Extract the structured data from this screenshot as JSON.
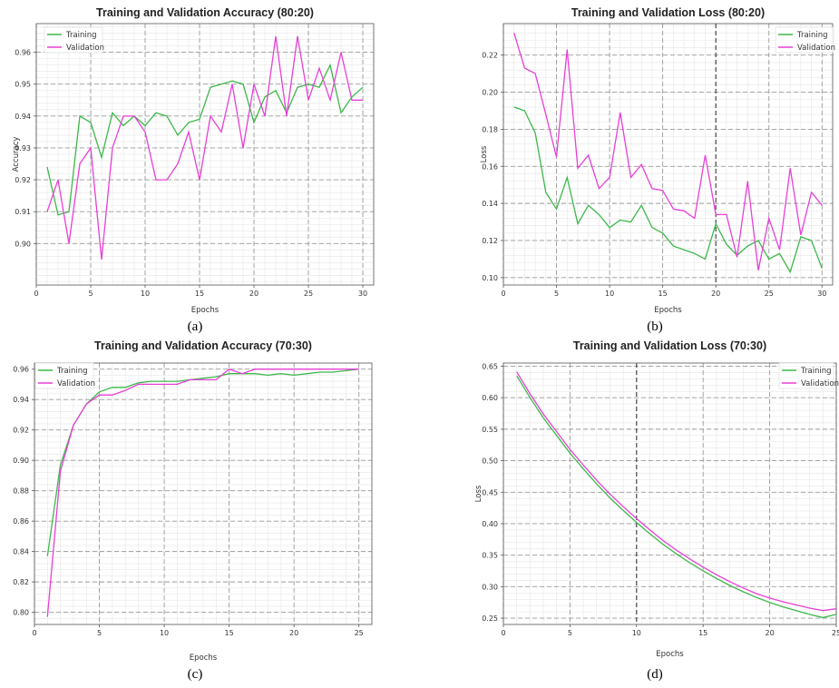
{
  "colors": {
    "training": "#3cb84a",
    "validation": "#e83fd8"
  },
  "chart_data": [
    {
      "type": "line",
      "title": "Training and Validation Accuracy (80:20)",
      "xlabel": "Epochs",
      "ylabel": "Accuracy",
      "caption": "(a)",
      "xlim": [
        0,
        31
      ],
      "ylim": [
        0.887,
        0.969
      ],
      "xticks": [
        "0",
        "5",
        "10",
        "15",
        "20",
        "25",
        "30"
      ],
      "yticks": [
        "0.90",
        "0.91",
        "0.92",
        "0.93",
        "0.94",
        "0.95",
        "0.96"
      ],
      "grid": true,
      "legend_position": "top-left",
      "x": [
        1,
        2,
        3,
        4,
        5,
        6,
        7,
        8,
        9,
        10,
        11,
        12,
        13,
        14,
        15,
        16,
        17,
        18,
        19,
        20,
        21,
        22,
        23,
        24,
        25,
        26,
        27,
        28,
        29,
        30
      ],
      "series": [
        {
          "name": "Training",
          "values": [
            0.924,
            0.909,
            0.91,
            0.94,
            0.938,
            0.927,
            0.941,
            0.937,
            0.94,
            0.937,
            0.941,
            0.94,
            0.934,
            0.938,
            0.939,
            0.949,
            0.95,
            0.951,
            0.95,
            0.938,
            0.946,
            0.948,
            0.941,
            0.949,
            0.95,
            0.949,
            0.956,
            0.941,
            0.946,
            0.949
          ]
        },
        {
          "name": "Validation",
          "values": [
            0.91,
            0.92,
            0.9,
            0.925,
            0.93,
            0.895,
            0.93,
            0.94,
            0.94,
            0.935,
            0.92,
            0.92,
            0.925,
            0.935,
            0.92,
            0.94,
            0.935,
            0.95,
            0.93,
            0.95,
            0.94,
            0.965,
            0.94,
            0.965,
            0.945,
            0.955,
            0.945,
            0.96,
            0.945,
            0.945
          ]
        }
      ]
    },
    {
      "type": "line",
      "title": "Training and Validation Loss (80:20)",
      "xlabel": "Epochs",
      "ylabel": "Loss",
      "caption": "(b)",
      "xlim": [
        0,
        31
      ],
      "ylim": [
        0.096,
        0.237
      ],
      "xticks": [
        "0",
        "5",
        "10",
        "15",
        "20",
        "25",
        "30"
      ],
      "yticks": [
        "0.10",
        "0.12",
        "0.14",
        "0.16",
        "0.18",
        "0.20",
        "0.22"
      ],
      "grid": true,
      "legend_position": "top-right",
      "x": [
        1,
        2,
        3,
        4,
        5,
        6,
        7,
        8,
        9,
        10,
        11,
        12,
        13,
        14,
        15,
        16,
        17,
        18,
        19,
        20,
        21,
        22,
        23,
        24,
        25,
        26,
        27,
        28,
        29,
        30
      ],
      "series": [
        {
          "name": "Training",
          "values": [
            0.192,
            0.19,
            0.178,
            0.146,
            0.137,
            0.154,
            0.129,
            0.139,
            0.134,
            0.127,
            0.131,
            0.13,
            0.139,
            0.127,
            0.124,
            0.117,
            0.115,
            0.113,
            0.11,
            0.129,
            0.118,
            0.112,
            0.117,
            0.12,
            0.11,
            0.113,
            0.103,
            0.122,
            0.12,
            0.105
          ]
        },
        {
          "name": "Validation",
          "values": [
            0.232,
            0.213,
            0.21,
            0.188,
            0.165,
            0.223,
            0.159,
            0.166,
            0.148,
            0.154,
            0.189,
            0.154,
            0.161,
            0.148,
            0.147,
            0.137,
            0.136,
            0.132,
            0.166,
            0.134,
            0.134,
            0.111,
            0.152,
            0.104,
            0.132,
            0.115,
            0.159,
            0.123,
            0.146,
            0.139
          ]
        }
      ]
    },
    {
      "type": "line",
      "title": "Training and Validation Accuracy (70:30)",
      "xlabel": "Epochs",
      "ylabel": "",
      "caption": "(c)",
      "xlim": [
        0,
        26
      ],
      "ylim": [
        0.792,
        0.964
      ],
      "xticks": [
        "0",
        "5",
        "10",
        "15",
        "20",
        "25"
      ],
      "yticks": [
        "0.80",
        "0.82",
        "0.84",
        "0.86",
        "0.88",
        "0.90",
        "0.92",
        "0.94",
        "0.96"
      ],
      "grid": true,
      "legend_position": "top-left",
      "x": [
        1,
        2,
        3,
        4,
        5,
        6,
        7,
        8,
        9,
        10,
        11,
        12,
        13,
        14,
        15,
        16,
        17,
        18,
        19,
        20,
        21,
        22,
        23,
        24,
        25
      ],
      "series": [
        {
          "name": "Training",
          "values": [
            0.837,
            0.897,
            0.923,
            0.937,
            0.945,
            0.948,
            0.948,
            0.951,
            0.952,
            0.952,
            0.952,
            0.953,
            0.954,
            0.955,
            0.957,
            0.957,
            0.957,
            0.956,
            0.957,
            0.956,
            0.957,
            0.958,
            0.958,
            0.959,
            0.96
          ]
        },
        {
          "name": "Validation",
          "values": [
            0.797,
            0.893,
            0.923,
            0.937,
            0.943,
            0.943,
            0.946,
            0.95,
            0.95,
            0.95,
            0.95,
            0.953,
            0.953,
            0.953,
            0.96,
            0.957,
            0.96,
            0.96,
            0.96,
            0.96,
            0.96,
            0.96,
            0.96,
            0.96,
            0.96
          ]
        }
      ]
    },
    {
      "type": "line",
      "title": "Training and Validation Loss (70:30)",
      "xlabel": "Epochs",
      "ylabel": "Loss",
      "caption": "(d)",
      "xlim": [
        0,
        25
      ],
      "ylim": [
        0.24,
        0.655
      ],
      "xticks": [
        "0",
        "5",
        "10",
        "15",
        "20",
        "25"
      ],
      "yticks": [
        "0.25",
        "0.30",
        "0.35",
        "0.40",
        "0.45",
        "0.50",
        "0.55",
        "0.60",
        "0.65"
      ],
      "grid": true,
      "legend_position": "top-right",
      "x": [
        1,
        2,
        3,
        4,
        5,
        6,
        7,
        8,
        9,
        10,
        11,
        12,
        13,
        14,
        15,
        16,
        17,
        18,
        19,
        20,
        21,
        22,
        23,
        24,
        25
      ],
      "series": [
        {
          "name": "Training",
          "values": [
            0.635,
            0.6,
            0.568,
            0.54,
            0.512,
            0.487,
            0.463,
            0.441,
            0.421,
            0.402,
            0.384,
            0.367,
            0.352,
            0.338,
            0.325,
            0.313,
            0.302,
            0.292,
            0.283,
            0.275,
            0.268,
            0.262,
            0.256,
            0.251,
            0.256
          ]
        },
        {
          "name": "Validation",
          "values": [
            0.641,
            0.606,
            0.574,
            0.546,
            0.518,
            0.493,
            0.469,
            0.447,
            0.427,
            0.408,
            0.39,
            0.373,
            0.358,
            0.344,
            0.331,
            0.319,
            0.308,
            0.298,
            0.289,
            0.282,
            0.276,
            0.271,
            0.266,
            0.262,
            0.265
          ]
        }
      ]
    }
  ]
}
